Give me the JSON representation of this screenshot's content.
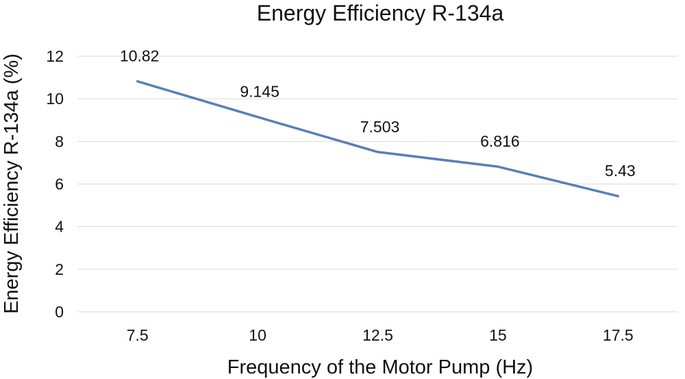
{
  "chart_data": {
    "type": "line",
    "title": "Energy Efficiency R-134a",
    "xlabel": "Frequency of the Motor Pump (Hz)",
    "ylabel": "Energy Efficiency R-134a (%)",
    "categories": [
      "7.5",
      "10",
      "12.5",
      "15",
      "17.5"
    ],
    "series": [
      {
        "name": "Energy Efficiency R-134a",
        "values": [
          10.82,
          9.145,
          7.503,
          6.816,
          5.43
        ],
        "labels": [
          "10.82",
          "9.145",
          "7.503",
          "6.816",
          "5.43"
        ],
        "color": "#5b7fb4"
      }
    ],
    "ylim": [
      0,
      12
    ],
    "yticks": [
      "0",
      "2",
      "4",
      "6",
      "8",
      "10",
      "12"
    ],
    "grid": true,
    "legend": "none"
  }
}
